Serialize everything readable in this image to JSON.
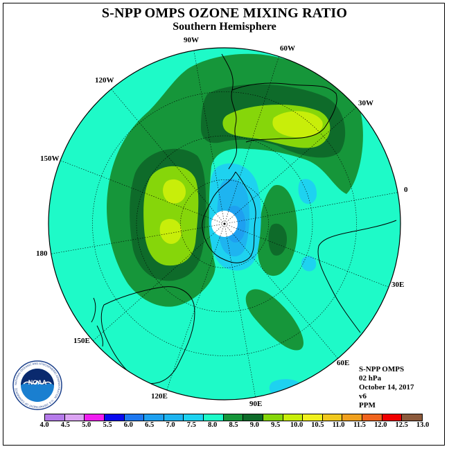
{
  "title": "S-NPP OMPS OZONE MIXING RATIO",
  "subtitle": "Southern Hemisphere",
  "longitude_labels": {
    "lon_90w": "90W",
    "lon_60w": "60W",
    "lon_30w": "30W",
    "lon_0": "0",
    "lon_30e": "30E",
    "lon_60e": "60E",
    "lon_90e": "90E",
    "lon_120e": "120E",
    "lon_150e": "150E",
    "lon_180": "180",
    "lon_150w": "150W",
    "lon_120w": "120W"
  },
  "info": {
    "instrument": "S-NPP OMPS",
    "level": "02 hPa",
    "date": "October 14, 2017",
    "version": "v6",
    "units": "PPM"
  },
  "logo": {
    "text": "NOAA",
    "ring_text": "NATIONAL OCEANIC AND ATMOSPHERIC ADMINISTRATION · U.S. DEPARTMENT OF COMMERCE"
  },
  "colorbar": {
    "ticks": [
      "4.0",
      "4.5",
      "5.0",
      "5.5",
      "6.0",
      "6.5",
      "7.0",
      "7.5",
      "8.0",
      "8.5",
      "9.0",
      "9.5",
      "10.0",
      "10.5",
      "11.0",
      "11.5",
      "12.0",
      "12.5",
      "13.0"
    ],
    "colors": [
      "#b57bea",
      "#dba3f2",
      "#f01ef0",
      "#0a0aee",
      "#1e78f0",
      "#1ea0f0",
      "#1eb4f0",
      "#1ed2f0",
      "#1efac8",
      "#16963a",
      "#0e6b2a",
      "#86d60a",
      "#c8ee0a",
      "#f0f01e",
      "#f0c81e",
      "#f0a01e",
      "#f0641e",
      "#f00000",
      "#8c5a3c"
    ]
  },
  "colors": {
    "background_field": "#1efac8",
    "land_outline": "#000000",
    "graticule": "#000000"
  }
}
